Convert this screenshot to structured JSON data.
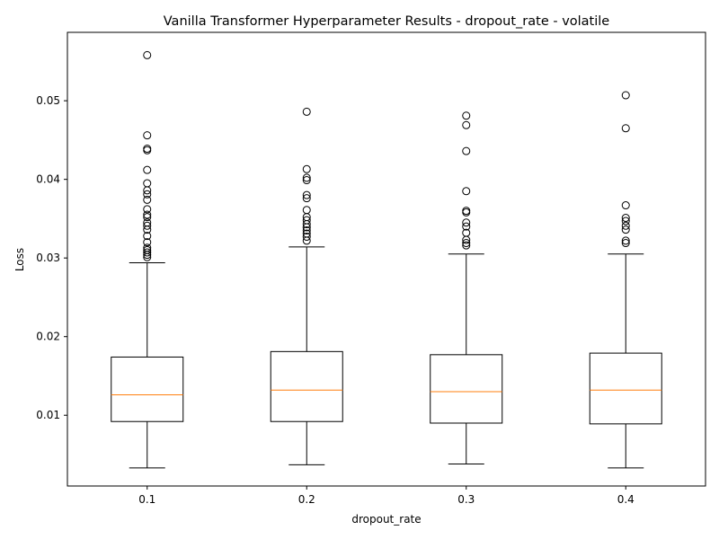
{
  "chart_data": {
    "type": "box",
    "title": "Vanilla Transformer Hyperparameter Results - dropout_rate - volatile",
    "xlabel": "dropout_rate",
    "ylabel": "Loss",
    "ylim": [
      0.001,
      0.0587
    ],
    "yticks": [
      0.01,
      0.02,
      0.03,
      0.04,
      0.05
    ],
    "ytick_labels": [
      "0.01",
      "0.02",
      "0.03",
      "0.04",
      "0.05"
    ],
    "grid": false,
    "legend": "none",
    "colors": {
      "median": "#ff7f0e",
      "box": "#000000"
    },
    "categories": [
      "0.1",
      "0.2",
      "0.3",
      "0.4"
    ],
    "boxes": [
      {
        "label": "0.1",
        "whisker_low": 0.0033,
        "q1": 0.0092,
        "median": 0.0126,
        "q3": 0.0174,
        "whisker_high": 0.0294,
        "outliers": [
          0.0301,
          0.0304,
          0.0307,
          0.031,
          0.0313,
          0.032,
          0.0328,
          0.0336,
          0.0341,
          0.0345,
          0.0352,
          0.0355,
          0.0362,
          0.0374,
          0.0381,
          0.0386,
          0.0395,
          0.0412,
          0.0437,
          0.0439,
          0.0456,
          0.0558
        ]
      },
      {
        "label": "0.2",
        "whisker_low": 0.0037,
        "q1": 0.0092,
        "median": 0.0132,
        "q3": 0.0181,
        "whisker_high": 0.0314,
        "outliers": [
          0.0322,
          0.0327,
          0.0331,
          0.0335,
          0.0339,
          0.0343,
          0.0348,
          0.0352,
          0.0361,
          0.0376,
          0.038,
          0.0399,
          0.0402,
          0.0413,
          0.0486
        ]
      },
      {
        "label": "0.3",
        "whisker_low": 0.0038,
        "q1": 0.009,
        "median": 0.013,
        "q3": 0.0177,
        "whisker_high": 0.0305,
        "outliers": [
          0.0316,
          0.0319,
          0.0323,
          0.0332,
          0.034,
          0.0345,
          0.0358,
          0.036,
          0.0385,
          0.0436,
          0.0469,
          0.0481
        ]
      },
      {
        "label": "0.4",
        "whisker_low": 0.0033,
        "q1": 0.0089,
        "median": 0.0132,
        "q3": 0.0179,
        "whisker_high": 0.0305,
        "outliers": [
          0.0319,
          0.0322,
          0.0336,
          0.0341,
          0.0347,
          0.0351,
          0.0367,
          0.0465,
          0.0507
        ]
      }
    ]
  }
}
